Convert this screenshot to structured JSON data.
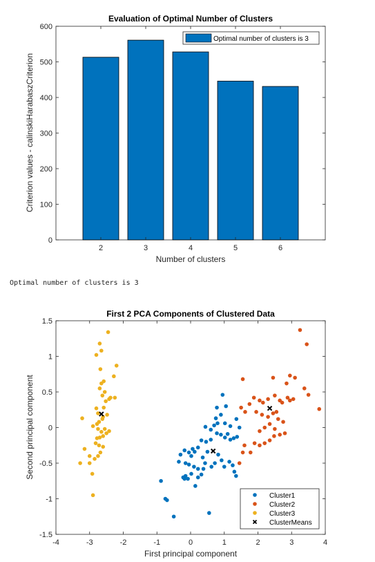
{
  "console_output": "Optimal number of clusters is 3",
  "colors": {
    "bar_fill": "#0072BD",
    "cluster1": "#0072BD",
    "cluster2": "#D95319",
    "cluster3": "#EDB120",
    "means": "#000000",
    "axis": "#262626"
  },
  "chart_data": [
    {
      "type": "bar",
      "title": "Evaluation of Optimal Number of Clusters",
      "xlabel": "Number of clusters",
      "ylabel": "Criterion values - calinskiHarabaszCriterion",
      "categories": [
        "2",
        "3",
        "4",
        "5",
        "6"
      ],
      "x": [
        2,
        3,
        4,
        5,
        6
      ],
      "values": [
        513,
        561,
        528,
        446,
        431
      ],
      "xlim": [
        1,
        7
      ],
      "ylim": [
        0,
        600
      ],
      "yticks": [
        0,
        100,
        200,
        300,
        400,
        500,
        600
      ],
      "legend": {
        "position": "top-right",
        "entries": [
          "Optimal number of clusters is 3"
        ]
      },
      "grid": false
    },
    {
      "type": "scatter",
      "title": "First 2 PCA Components of Clustered Data",
      "xlabel": "First principal component",
      "ylabel": "Second principal component",
      "xlim": [
        -4,
        4
      ],
      "ylim": [
        -1.5,
        1.5
      ],
      "xticks": [
        -4,
        -3,
        -2,
        -1,
        0,
        1,
        2,
        3,
        4
      ],
      "yticks": [
        -1.5,
        -1,
        -0.5,
        0,
        0.5,
        1,
        1.5
      ],
      "legend": {
        "position": "bottom-right",
        "entries": [
          "Cluster1",
          "Cluster2",
          "Cluster3",
          "ClusterMeans"
        ]
      },
      "grid": false,
      "series": [
        {
          "name": "Cluster1",
          "points": [
            [
              0.95,
              0.46
            ],
            [
              1.05,
              0.3
            ],
            [
              0.78,
              0.28
            ],
            [
              0.9,
              0.18
            ],
            [
              0.75,
              0.13
            ],
            [
              0.8,
              0.06
            ],
            [
              0.7,
              0.03
            ],
            [
              0.6,
              -0.03
            ],
            [
              0.44,
              0.01
            ],
            [
              1.02,
              0.06
            ],
            [
              1.18,
              0.02
            ],
            [
              1.36,
              0.12
            ],
            [
              1.45,
              0.0
            ],
            [
              1.38,
              -0.13
            ],
            [
              1.28,
              -0.15
            ],
            [
              1.18,
              -0.17
            ],
            [
              1.02,
              -0.14
            ],
            [
              0.9,
              -0.1
            ],
            [
              1.1,
              -0.09
            ],
            [
              0.78,
              -0.08
            ],
            [
              0.6,
              -0.17
            ],
            [
              0.46,
              -0.2
            ],
            [
              0.32,
              -0.18
            ],
            [
              0.22,
              -0.28
            ],
            [
              0.12,
              -0.34
            ],
            [
              0.06,
              -0.3
            ],
            [
              0.02,
              -0.4
            ],
            [
              0.36,
              -0.42
            ],
            [
              0.5,
              -0.34
            ],
            [
              0.82,
              -0.38
            ],
            [
              0.92,
              -0.46
            ],
            [
              1.0,
              -0.55
            ],
            [
              1.15,
              -0.48
            ],
            [
              1.25,
              -0.53
            ],
            [
              1.3,
              -0.62
            ],
            [
              1.35,
              -0.68
            ],
            [
              0.72,
              -0.5
            ],
            [
              0.62,
              -0.55
            ],
            [
              0.43,
              -0.5
            ],
            [
              0.38,
              -0.58
            ],
            [
              0.22,
              -0.58
            ],
            [
              -0.05,
              -0.35
            ],
            [
              -0.18,
              -0.32
            ],
            [
              -0.15,
              -0.5
            ],
            [
              -0.05,
              -0.52
            ],
            [
              -0.15,
              -0.68
            ],
            [
              -0.08,
              -0.72
            ],
            [
              0.02,
              -0.65
            ],
            [
              0.1,
              -0.55
            ],
            [
              0.22,
              -0.7
            ],
            [
              0.32,
              -0.66
            ],
            [
              0.14,
              -0.82
            ],
            [
              -0.35,
              -0.48
            ],
            [
              -0.3,
              -0.38
            ],
            [
              -0.18,
              -0.72
            ],
            [
              -0.22,
              -0.7
            ],
            [
              -0.75,
              -1.0
            ],
            [
              -0.7,
              -1.02
            ],
            [
              -0.88,
              -0.75
            ],
            [
              -0.5,
              -1.25
            ],
            [
              0.55,
              -1.2
            ]
          ]
        },
        {
          "name": "Cluster2",
          "points": [
            [
              3.25,
              1.37
            ],
            [
              3.45,
              1.17
            ],
            [
              3.82,
              0.26
            ],
            [
              3.5,
              0.46
            ],
            [
              3.38,
              0.55
            ],
            [
              3.1,
              0.7
            ],
            [
              2.95,
              0.73
            ],
            [
              2.85,
              0.62
            ],
            [
              2.88,
              0.42
            ],
            [
              2.72,
              0.35
            ],
            [
              2.45,
              0.7
            ],
            [
              2.5,
              0.45
            ],
            [
              2.3,
              0.4
            ],
            [
              2.15,
              0.35
            ],
            [
              2.05,
              0.38
            ],
            [
              1.88,
              0.42
            ],
            [
              1.75,
              0.33
            ],
            [
              1.62,
              0.22
            ],
            [
              1.5,
              0.28
            ],
            [
              1.55,
              0.68
            ],
            [
              1.95,
              0.22
            ],
            [
              2.12,
              0.18
            ],
            [
              2.3,
              0.15
            ],
            [
              2.45,
              0.2
            ],
            [
              2.6,
              0.12
            ],
            [
              2.75,
              0.08
            ],
            [
              2.95,
              0.38
            ],
            [
              3.05,
              0.4
            ],
            [
              2.65,
              0.38
            ],
            [
              2.55,
              0.22
            ],
            [
              2.35,
              0.05
            ],
            [
              2.2,
              0.0
            ],
            [
              2.05,
              -0.05
            ],
            [
              2.5,
              -0.02
            ],
            [
              2.65,
              -0.1
            ],
            [
              2.35,
              -0.18
            ],
            [
              2.2,
              -0.22
            ],
            [
              2.05,
              -0.25
            ],
            [
              1.9,
              -0.22
            ],
            [
              1.78,
              -0.35
            ],
            [
              1.6,
              -0.25
            ],
            [
              1.55,
              -0.35
            ],
            [
              1.45,
              -0.5
            ],
            [
              2.8,
              -0.08
            ],
            [
              2.48,
              -0.12
            ]
          ]
        },
        {
          "name": "Cluster3",
          "points": [
            [
              -2.45,
              1.34
            ],
            [
              -2.7,
              1.18
            ],
            [
              -2.65,
              1.08
            ],
            [
              -2.8,
              1.02
            ],
            [
              -2.68,
              0.82
            ],
            [
              -2.2,
              0.87
            ],
            [
              -2.28,
              0.72
            ],
            [
              -2.65,
              0.62
            ],
            [
              -2.58,
              0.65
            ],
            [
              -2.7,
              0.55
            ],
            [
              -2.55,
              0.5
            ],
            [
              -2.62,
              0.45
            ],
            [
              -2.52,
              0.37
            ],
            [
              -2.42,
              0.4
            ],
            [
              -2.38,
              0.42
            ],
            [
              -2.25,
              0.42
            ],
            [
              -2.58,
              0.28
            ],
            [
              -2.8,
              0.27
            ],
            [
              -2.75,
              0.2
            ],
            [
              -2.6,
              0.15
            ],
            [
              -2.48,
              0.18
            ],
            [
              -2.62,
              0.12
            ],
            [
              -2.72,
              0.08
            ],
            [
              -2.78,
              0.05
            ],
            [
              -2.75,
              -0.02
            ],
            [
              -2.65,
              -0.06
            ],
            [
              -2.55,
              -0.02
            ],
            [
              -2.5,
              -0.08
            ],
            [
              -2.42,
              -0.05
            ],
            [
              -2.6,
              -0.12
            ],
            [
              -2.7,
              -0.14
            ],
            [
              -2.78,
              -0.15
            ],
            [
              -2.82,
              -0.22
            ],
            [
              -2.72,
              -0.25
            ],
            [
              -2.6,
              -0.27
            ],
            [
              -2.68,
              -0.35
            ],
            [
              -2.75,
              -0.4
            ],
            [
              -2.85,
              -0.44
            ],
            [
              -3.15,
              -0.3
            ],
            [
              -3.0,
              -0.4
            ],
            [
              -3.22,
              0.13
            ],
            [
              -3.0,
              -0.5
            ],
            [
              -3.28,
              -0.5
            ],
            [
              -2.92,
              -0.65
            ],
            [
              -2.9,
              -0.95
            ],
            [
              -2.9,
              0.02
            ]
          ]
        },
        {
          "name": "ClusterMeans",
          "points": [
            [
              -2.65,
              0.19
            ],
            [
              0.67,
              -0.33
            ],
            [
              2.35,
              0.27
            ]
          ]
        }
      ]
    }
  ]
}
